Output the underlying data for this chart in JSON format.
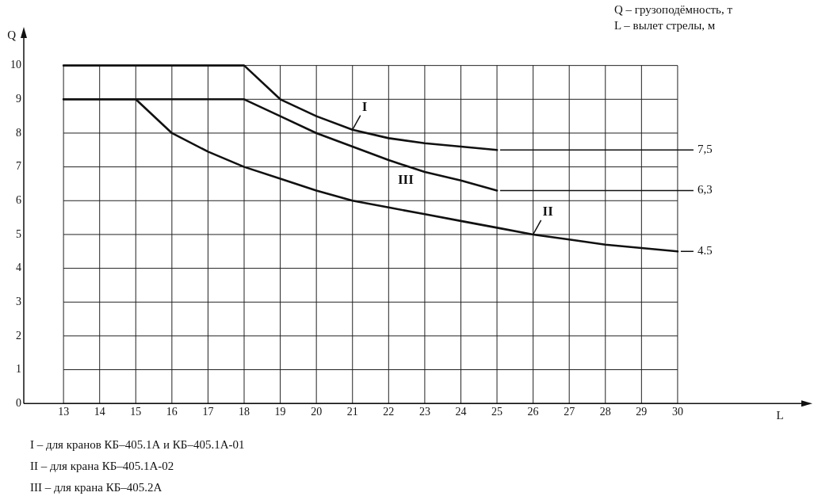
{
  "chart_data": {
    "type": "line",
    "xlabel": "L",
    "ylabel": "Q",
    "xlim": [
      11.9,
      33.6
    ],
    "ylim": [
      0,
      11
    ],
    "xticks": [
      13,
      14,
      15,
      16,
      17,
      18,
      19,
      20,
      21,
      22,
      23,
      24,
      25,
      26,
      27,
      28,
      29,
      30
    ],
    "yticks": [
      0,
      1,
      2,
      3,
      4,
      5,
      6,
      7,
      8,
      9,
      10
    ],
    "grid": true,
    "legend": false,
    "marker": "none",
    "line_style": "solid",
    "series": [
      {
        "name": "I",
        "color": "#111111",
        "x": [
          13,
          18,
          19,
          20,
          21,
          22,
          23,
          24,
          25
        ],
        "values": [
          10,
          10,
          9,
          8.5,
          8.1,
          7.85,
          7.7,
          7.6,
          7.5
        ],
        "value_labels": [
          null,
          null,
          null,
          null,
          null,
          null,
          null,
          null,
          "7,5"
        ]
      },
      {
        "name": "II",
        "color": "#111111",
        "x": [
          13,
          15,
          16,
          17,
          18,
          19,
          20,
          21,
          22,
          23,
          24,
          25,
          26,
          27,
          28,
          29,
          30
        ],
        "values": [
          9,
          9,
          8,
          7.45,
          7,
          6.65,
          6.3,
          6,
          5.8,
          5.6,
          5.4,
          5.2,
          5,
          4.85,
          4.7,
          4.6,
          4.5
        ],
        "value_labels": [
          null,
          null,
          null,
          null,
          null,
          null,
          null,
          null,
          null,
          null,
          null,
          null,
          null,
          null,
          null,
          null,
          "4.5"
        ]
      },
      {
        "name": "III",
        "color": "#111111",
        "x": [
          13,
          18,
          19,
          20,
          21,
          22,
          23,
          24,
          25
        ],
        "values": [
          9,
          9,
          8.5,
          8,
          7.6,
          7.2,
          6.85,
          6.6,
          6.3
        ],
        "value_labels": [
          null,
          null,
          null,
          null,
          null,
          null,
          null,
          null,
          "6,3"
        ]
      }
    ],
    "annotations": [
      "Q – грузоподёмность, т",
      "L – вылет стрелы, м",
      "I – для кранов КБ–405.1А и КБ–405.1А-01",
      "II – для крана КБ–405.1А-02",
      "III – для крана КБ–405.2А"
    ]
  }
}
